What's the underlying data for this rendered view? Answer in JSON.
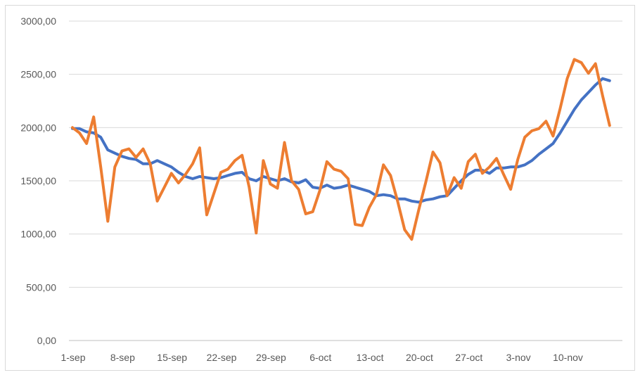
{
  "chart_data": {
    "type": "line",
    "title": "",
    "xlabel": "",
    "ylabel": "",
    "ylim": [
      0,
      3000
    ],
    "y_ticks": [
      "0,00",
      "500,00",
      "1000,00",
      "1500,00",
      "2000,00",
      "2500,00",
      "3000,00"
    ],
    "x_tick_labels": [
      "1-sep",
      "8-sep",
      "15-sep",
      "22-sep",
      "29-sep",
      "6-oct",
      "13-oct",
      "20-oct",
      "27-oct",
      "3-nov",
      "10-nov"
    ],
    "x_start_label": "1-sep",
    "grid": "horizontal",
    "legend": "none",
    "series": [
      {
        "color": "#4472c4",
        "values": [
          1990,
          1990,
          1960,
          1950,
          1910,
          1790,
          1760,
          1730,
          1710,
          1700,
          1660,
          1660,
          1690,
          1660,
          1630,
          1580,
          1540,
          1520,
          1540,
          1530,
          1520,
          1530,
          1550,
          1570,
          1580,
          1520,
          1500,
          1540,
          1520,
          1500,
          1520,
          1490,
          1480,
          1510,
          1440,
          1430,
          1460,
          1430,
          1440,
          1460,
          1440,
          1420,
          1400,
          1360,
          1370,
          1360,
          1330,
          1330,
          1310,
          1300,
          1320,
          1330,
          1350,
          1360,
          1430,
          1500,
          1560,
          1600,
          1600,
          1570,
          1620,
          1620,
          1630,
          1630,
          1650,
          1690,
          1750,
          1800,
          1850,
          1950,
          2060,
          2170,
          2260,
          2330,
          2400,
          2460,
          2440
        ]
      },
      {
        "color": "#ed7d31",
        "values": [
          2000,
          1950,
          1850,
          2100,
          1630,
          1120,
          1630,
          1780,
          1800,
          1720,
          1800,
          1660,
          1310,
          1440,
          1570,
          1480,
          1560,
          1660,
          1810,
          1180,
          1380,
          1580,
          1610,
          1690,
          1740,
          1440,
          1010,
          1690,
          1470,
          1430,
          1860,
          1500,
          1420,
          1190,
          1210,
          1410,
          1680,
          1610,
          1590,
          1520,
          1090,
          1080,
          1250,
          1370,
          1650,
          1550,
          1310,
          1040,
          950,
          1230,
          1490,
          1770,
          1670,
          1360,
          1530,
          1430,
          1680,
          1750,
          1570,
          1630,
          1710,
          1560,
          1420,
          1700,
          1910,
          1970,
          1990,
          2060,
          1920,
          2180,
          2460,
          2640,
          2610,
          2510,
          2600,
          2300,
          2020
        ]
      }
    ]
  }
}
